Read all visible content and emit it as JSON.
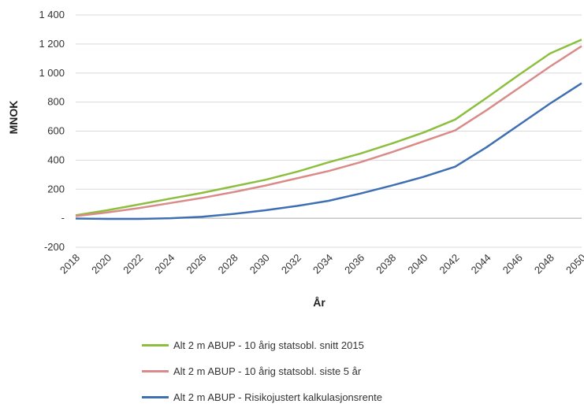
{
  "chart_data": {
    "type": "line",
    "xlabel": "År",
    "ylabel": "MNOK",
    "ylim": [
      -200,
      1400
    ],
    "yticks": [
      -200,
      0,
      200,
      400,
      600,
      800,
      1000,
      1200,
      1400
    ],
    "ytick_labels": [
      "-200",
      "-",
      "200",
      "400",
      "600",
      "800",
      "1 000",
      "1 200",
      "1 400"
    ],
    "xlim": [
      2018,
      2050
    ],
    "xticks": [
      2018,
      2020,
      2022,
      2024,
      2026,
      2028,
      2030,
      2032,
      2034,
      2036,
      2038,
      2040,
      2042,
      2044,
      2046,
      2048,
      2050
    ],
    "xtick_labels": [
      "2018",
      "2020",
      "2022",
      "2024",
      "2026",
      "2028",
      "2030",
      "2032",
      "2034",
      "2036",
      "2038",
      "2040",
      "2042",
      "2044",
      "2046",
      "2048",
      "2050"
    ],
    "grid": "horizontal",
    "legend_position": "bottom",
    "x": [
      2018,
      2020,
      2022,
      2024,
      2026,
      2028,
      2030,
      2032,
      2034,
      2036,
      2038,
      2040,
      2042,
      2044,
      2046,
      2048,
      2050
    ],
    "series": [
      {
        "name": "Alt 2 m ABUP - 10 årig statsobl. snitt 2015",
        "color": "#8cbf3f",
        "values": [
          20,
          55,
          95,
          135,
          175,
          220,
          265,
          320,
          385,
          445,
          515,
          590,
          680,
          830,
          985,
          1135,
          1230
        ]
      },
      {
        "name": "Alt 2 m ABUP - 10 årig statsobl. siste 5 år",
        "color": "#d98b89",
        "values": [
          15,
          40,
          70,
          105,
          140,
          180,
          225,
          275,
          325,
          385,
          455,
          530,
          605,
          745,
          895,
          1045,
          1185
        ]
      },
      {
        "name": "Alt 2 m ABUP - Risikojustert kalkulasjonsrente",
        "color": "#3f6fb3",
        "values": [
          -2,
          -5,
          -5,
          0,
          10,
          30,
          55,
          85,
          120,
          170,
          225,
          285,
          355,
          490,
          640,
          790,
          930
        ]
      }
    ]
  }
}
